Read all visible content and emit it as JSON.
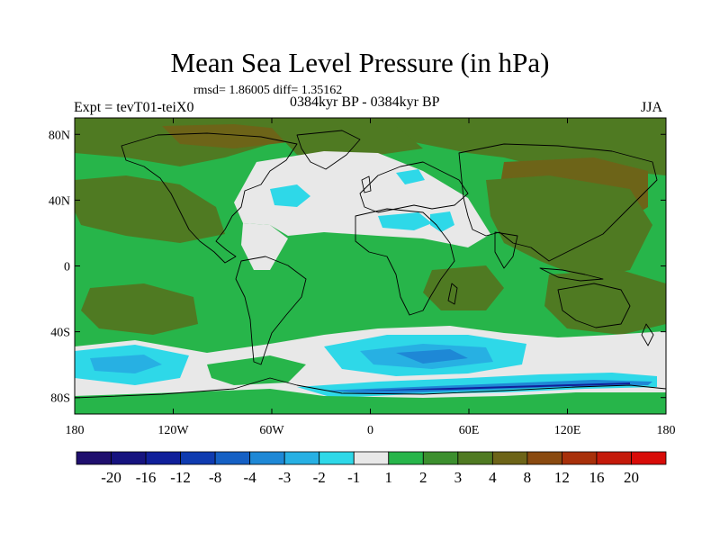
{
  "title": "Mean Sea Level Pressure (in hPa)",
  "stats": "rmsd= 1.86005 diff= 1.35162",
  "subtitle_left": "Expt = tevT01-teiX0",
  "subtitle_center": "0384kyr BP - 0384kyr BP",
  "subtitle_right": "JJA",
  "map": {
    "lon_range": [
      -180,
      180
    ],
    "lat_range": [
      -90,
      90
    ],
    "lat_ticks": [
      {
        "value": 80,
        "label": "80N"
      },
      {
        "value": 40,
        "label": "40N"
      },
      {
        "value": 0,
        "label": "0"
      },
      {
        "value": -40,
        "label": "40S"
      },
      {
        "value": -80,
        "label": "80S"
      }
    ],
    "lon_ticks": [
      {
        "value": -180,
        "label": "180"
      },
      {
        "value": -120,
        "label": "120W"
      },
      {
        "value": -60,
        "label": "60W"
      },
      {
        "value": 0,
        "label": "0"
      },
      {
        "value": 60,
        "label": "60E"
      },
      {
        "value": 120,
        "label": "120E"
      },
      {
        "value": 180,
        "label": "180"
      }
    ]
  },
  "colorbar": {
    "labels": [
      "-20",
      "-16",
      "-12",
      "-8",
      "-4",
      "-3",
      "-2",
      "-1",
      "1",
      "2",
      "3",
      "4",
      "8",
      "12",
      "16",
      "20"
    ],
    "colors": [
      "#1f0f6e",
      "#16137f",
      "#101f9a",
      "#0f3bb0",
      "#1560c4",
      "#1e88d6",
      "#27b0e3",
      "#2ed8e8",
      "#e8e8e8",
      "#27b54a",
      "#3c8f2e",
      "#4f7a22",
      "#6d6418",
      "#8a4a10",
      "#a8300a",
      "#c41a0a",
      "#d80c08"
    ]
  },
  "palette": {
    "green": "#27b54a",
    "dark_green": "#4f7a22",
    "olive": "#6d6418",
    "brown": "#8a4a10",
    "white": "#e8e8e8",
    "cyan": "#2ed8e8",
    "light_blue": "#27b0e3",
    "blue": "#1e88d6",
    "navy": "#101f9a"
  }
}
